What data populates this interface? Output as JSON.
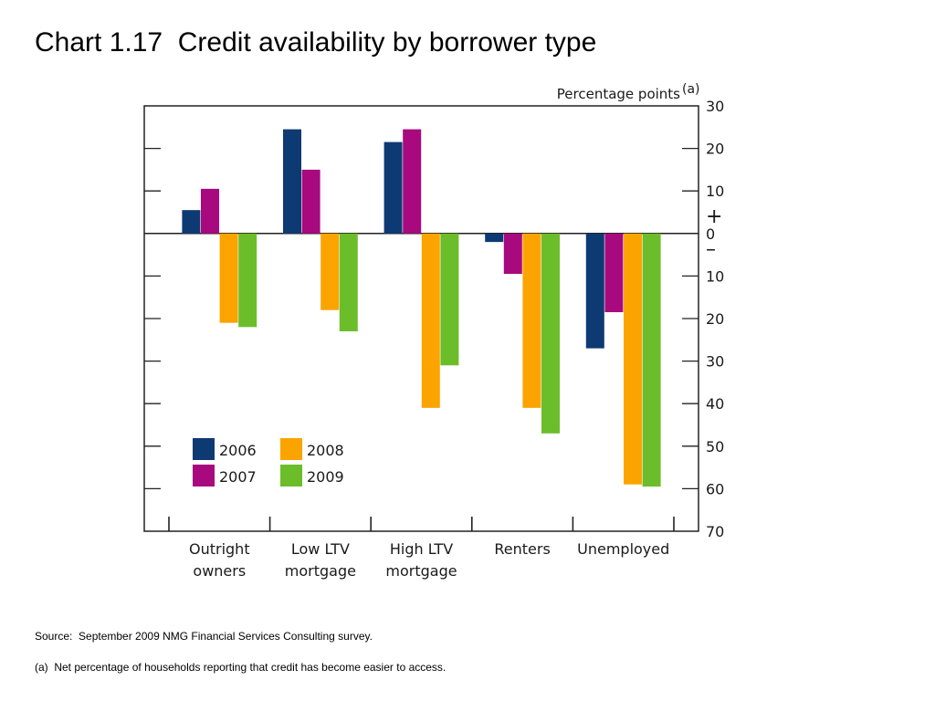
{
  "slide": {
    "title": "Chart 1.17  Credit availability by borrower type",
    "source": "Source:  September 2009 NMG Financial Services Consulting survey.",
    "footnote": "(a)  Net percentage of households reporting that credit has become easier to access."
  },
  "chart_data": {
    "type": "bar",
    "title": "",
    "unit_label": "Percentage points",
    "unit_superscript": "(a)",
    "categories": [
      [
        "Outright",
        "owners"
      ],
      [
        "Low LTV",
        "mortgage"
      ],
      [
        "High LTV",
        "mortgage"
      ],
      [
        "Renters"
      ],
      [
        "Unemployed"
      ]
    ],
    "series": [
      {
        "name": "2006",
        "color": "#0e3a73",
        "values": [
          5.5,
          24.5,
          21.5,
          -2,
          -27
        ]
      },
      {
        "name": "2007",
        "color": "#a8097f",
        "values": [
          10.5,
          15,
          24.5,
          -9.5,
          -18.5
        ]
      },
      {
        "name": "2008",
        "color": "#fba400",
        "values": [
          -21,
          -18,
          -41,
          -41,
          -59
        ]
      },
      {
        "name": "2009",
        "color": "#6cbd2a",
        "values": [
          -22,
          -23,
          -31,
          -47,
          -59.5
        ]
      }
    ],
    "ylim": [
      -70,
      30
    ],
    "y_ticks": [
      30,
      20,
      10,
      0,
      -10,
      -20,
      -30,
      -40,
      -50,
      -60,
      -70
    ],
    "y_tick_labels": [
      "30",
      "20",
      "10",
      "0",
      "10",
      "20",
      "30",
      "40",
      "50",
      "60",
      "70"
    ],
    "sign_labels": {
      "positive": "+",
      "negative": "–"
    },
    "axis_position": "right",
    "grid": false,
    "legend_position": "bottom-left"
  }
}
